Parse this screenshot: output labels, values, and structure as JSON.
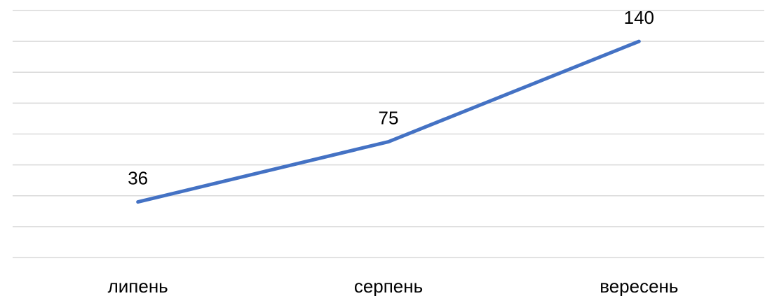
{
  "chart_data": {
    "type": "line",
    "categories": [
      "липень",
      "серпень",
      "вересень"
    ],
    "series": [
      {
        "values": [
          36,
          75,
          140
        ],
        "color": "#4472c4"
      }
    ],
    "ylim": [
      0,
      160
    ],
    "grid": true,
    "legend": "none",
    "data_labels": true
  }
}
